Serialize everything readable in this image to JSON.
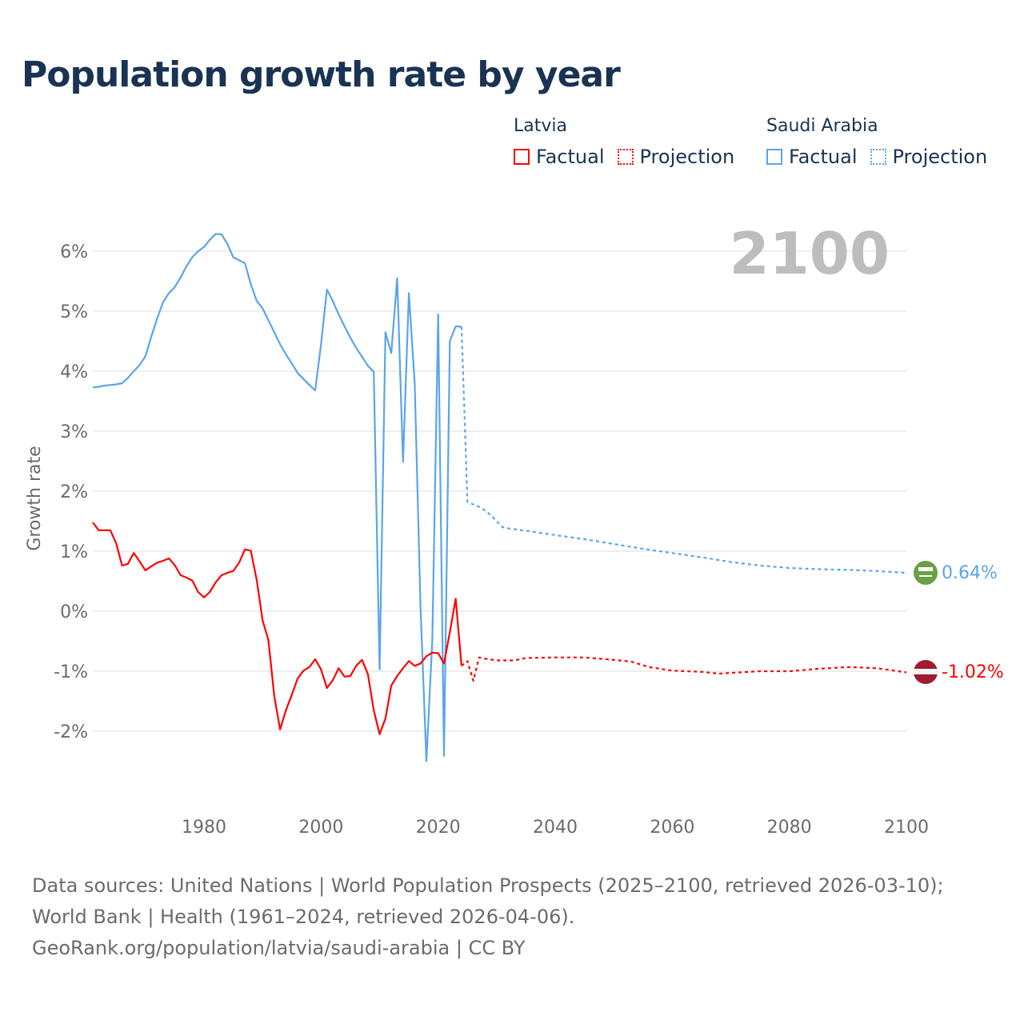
{
  "title": "Population growth rate by year",
  "legend": {
    "groups": [
      {
        "name": "Latvia",
        "factual": "Factual",
        "projection": "Projection",
        "color": "#ff0000"
      },
      {
        "name": "Saudi Arabia",
        "factual": "Factual",
        "projection": "Projection",
        "color": "#5aa5ea"
      }
    ]
  },
  "year_label": "2100",
  "end_labels": {
    "saudi": "0.64%",
    "latvia": "-1.02%"
  },
  "flag_icons": {
    "saudi": "saudi-arabia-flag-icon",
    "latvia": "latvia-flag-icon"
  },
  "source": {
    "line1": "Data sources: United Nations | World Population Prospects (2025–2100, retrieved 2026-03-10); World Bank | Health (1961–2024, retrieved 2026-04-06).",
    "line2": "GeoRank.org/population/latvia/saudi-arabia | CC BY"
  },
  "chart_data": {
    "type": "line",
    "title": "Population growth rate by year",
    "xlabel": "",
    "ylabel": "Growth rate",
    "xlim": [
      1961,
      2100
    ],
    "ylim": [
      -3,
      6.5
    ],
    "x_ticks": [
      1980,
      2000,
      2020,
      2040,
      2060,
      2080,
      2100
    ],
    "y_ticks": [
      -2,
      -1,
      0,
      1,
      2,
      3,
      4,
      5,
      6
    ],
    "y_tick_labels": [
      "-2%",
      "-1%",
      "0%",
      "1%",
      "2%",
      "3%",
      "4%",
      "5%",
      "6%"
    ],
    "grid": true,
    "legend_placement": "top-right",
    "series": [
      {
        "name": "Saudi Arabia Factual",
        "color": "#5aa5ea",
        "style": "solid",
        "points": [
          [
            1961,
            3.73
          ],
          [
            1962,
            3.74
          ],
          [
            1963,
            3.76
          ],
          [
            1964,
            3.77
          ],
          [
            1965,
            3.78
          ],
          [
            1966,
            3.8
          ],
          [
            1967,
            3.89
          ],
          [
            1968,
            4.0
          ],
          [
            1969,
            4.1
          ],
          [
            1970,
            4.25
          ],
          [
            1971,
            4.58
          ],
          [
            1972,
            4.88
          ],
          [
            1973,
            5.15
          ],
          [
            1974,
            5.3
          ],
          [
            1975,
            5.4
          ],
          [
            1976,
            5.56
          ],
          [
            1977,
            5.75
          ],
          [
            1978,
            5.9
          ],
          [
            1979,
            6.0
          ],
          [
            1980,
            6.07
          ],
          [
            1981,
            6.19
          ],
          [
            1982,
            6.29
          ],
          [
            1983,
            6.28
          ],
          [
            1984,
            6.12
          ],
          [
            1985,
            5.9
          ],
          [
            1986,
            5.85
          ],
          [
            1987,
            5.8
          ],
          [
            1988,
            5.45
          ],
          [
            1989,
            5.17
          ],
          [
            1990,
            5.05
          ],
          [
            1991,
            4.85
          ],
          [
            1992,
            4.65
          ],
          [
            1993,
            4.45
          ],
          [
            1994,
            4.28
          ],
          [
            1995,
            4.13
          ],
          [
            1996,
            3.97
          ],
          [
            1997,
            3.87
          ],
          [
            1998,
            3.77
          ],
          [
            1999,
            3.68
          ],
          [
            2000,
            4.45
          ],
          [
            2001,
            5.36
          ],
          [
            2002,
            5.17
          ],
          [
            2003,
            4.95
          ],
          [
            2004,
            4.75
          ],
          [
            2005,
            4.56
          ],
          [
            2006,
            4.39
          ],
          [
            2007,
            4.24
          ],
          [
            2008,
            4.09
          ],
          [
            2009,
            3.99
          ],
          [
            2010,
            -0.97
          ],
          [
            2011,
            4.65
          ],
          [
            2012,
            4.3
          ],
          [
            2013,
            5.55
          ],
          [
            2014,
            2.49
          ],
          [
            2015,
            5.3
          ],
          [
            2016,
            3.8
          ],
          [
            2017,
            0.05
          ],
          [
            2018,
            -2.5
          ],
          [
            2019,
            -0.48
          ],
          [
            2020,
            4.95
          ],
          [
            2021,
            -2.41
          ],
          [
            2022,
            4.5
          ],
          [
            2023,
            4.75
          ],
          [
            2024,
            4.74
          ]
        ]
      },
      {
        "name": "Saudi Arabia Projection",
        "color": "#5aa5ea",
        "style": "dotted",
        "points": [
          [
            2024,
            4.74
          ],
          [
            2025,
            1.82
          ],
          [
            2026,
            1.78
          ],
          [
            2027,
            1.74
          ],
          [
            2028,
            1.68
          ],
          [
            2029,
            1.6
          ],
          [
            2030,
            1.5
          ],
          [
            2031,
            1.4
          ],
          [
            2032,
            1.38
          ],
          [
            2035,
            1.34
          ],
          [
            2040,
            1.27
          ],
          [
            2045,
            1.2
          ],
          [
            2050,
            1.12
          ],
          [
            2055,
            1.04
          ],
          [
            2060,
            0.97
          ],
          [
            2065,
            0.9
          ],
          [
            2070,
            0.82
          ],
          [
            2075,
            0.76
          ],
          [
            2080,
            0.72
          ],
          [
            2085,
            0.7
          ],
          [
            2090,
            0.69
          ],
          [
            2095,
            0.67
          ],
          [
            2100,
            0.64
          ]
        ]
      },
      {
        "name": "Latvia Factual",
        "color": "#ff0000",
        "style": "solid",
        "points": [
          [
            1961,
            1.48
          ],
          [
            1962,
            1.35
          ],
          [
            1963,
            1.35
          ],
          [
            1964,
            1.35
          ],
          [
            1965,
            1.13
          ],
          [
            1966,
            0.76
          ],
          [
            1967,
            0.79
          ],
          [
            1968,
            0.97
          ],
          [
            1969,
            0.83
          ],
          [
            1970,
            0.68
          ],
          [
            1971,
            0.75
          ],
          [
            1972,
            0.81
          ],
          [
            1973,
            0.84
          ],
          [
            1974,
            0.88
          ],
          [
            1975,
            0.77
          ],
          [
            1976,
            0.6
          ],
          [
            1977,
            0.56
          ],
          [
            1978,
            0.51
          ],
          [
            1979,
            0.32
          ],
          [
            1980,
            0.23
          ],
          [
            1981,
            0.32
          ],
          [
            1982,
            0.48
          ],
          [
            1983,
            0.6
          ],
          [
            1984,
            0.64
          ],
          [
            1985,
            0.67
          ],
          [
            1986,
            0.81
          ],
          [
            1987,
            1.03
          ],
          [
            1988,
            1.01
          ],
          [
            1989,
            0.52
          ],
          [
            1990,
            -0.15
          ],
          [
            1991,
            -0.48
          ],
          [
            1992,
            -1.41
          ],
          [
            1993,
            -1.97
          ],
          [
            1994,
            -1.65
          ],
          [
            1995,
            -1.39
          ],
          [
            1996,
            -1.12
          ],
          [
            1997,
            -0.99
          ],
          [
            1998,
            -0.93
          ],
          [
            1999,
            -0.8
          ],
          [
            2000,
            -0.97
          ],
          [
            2001,
            -1.28
          ],
          [
            2002,
            -1.15
          ],
          [
            2003,
            -0.95
          ],
          [
            2004,
            -1.09
          ],
          [
            2005,
            -1.08
          ],
          [
            2006,
            -0.91
          ],
          [
            2007,
            -0.81
          ],
          [
            2008,
            -1.05
          ],
          [
            2009,
            -1.65
          ],
          [
            2010,
            -2.05
          ],
          [
            2011,
            -1.79
          ],
          [
            2012,
            -1.24
          ],
          [
            2013,
            -1.08
          ],
          [
            2014,
            -0.95
          ],
          [
            2015,
            -0.83
          ],
          [
            2016,
            -0.91
          ],
          [
            2017,
            -0.87
          ],
          [
            2018,
            -0.75
          ],
          [
            2019,
            -0.69
          ],
          [
            2020,
            -0.7
          ],
          [
            2021,
            -0.87
          ],
          [
            2022,
            -0.35
          ],
          [
            2023,
            0.21
          ],
          [
            2024,
            -0.91
          ]
        ]
      },
      {
        "name": "Latvia Projection",
        "color": "#ff0000",
        "style": "dotted",
        "points": [
          [
            2024,
            -0.91
          ],
          [
            2025,
            -0.83
          ],
          [
            2026,
            -1.16
          ],
          [
            2027,
            -0.77
          ],
          [
            2028,
            -0.79
          ],
          [
            2030,
            -0.82
          ],
          [
            2033,
            -0.82
          ],
          [
            2035,
            -0.78
          ],
          [
            2040,
            -0.77
          ],
          [
            2045,
            -0.77
          ],
          [
            2050,
            -0.81
          ],
          [
            2053,
            -0.84
          ],
          [
            2056,
            -0.93
          ],
          [
            2060,
            -0.99
          ],
          [
            2065,
            -1.01
          ],
          [
            2068,
            -1.04
          ],
          [
            2075,
            -1.0
          ],
          [
            2080,
            -1.0
          ],
          [
            2085,
            -0.96
          ],
          [
            2090,
            -0.93
          ],
          [
            2095,
            -0.95
          ],
          [
            2100,
            -1.02
          ]
        ]
      }
    ]
  }
}
